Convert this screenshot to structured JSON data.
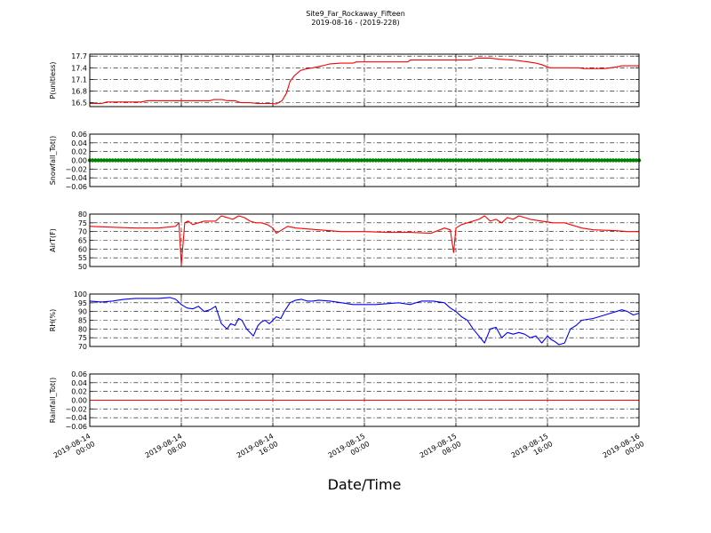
{
  "figure": {
    "title": "Site9_Far_Rockaway_Fifteen",
    "subtitle": "2019-08-16 - (2019-228)",
    "xlabel": "Date/Time",
    "xticks": [
      {
        "line1": "2019-08-14",
        "line2": "00:00"
      },
      {
        "line1": "2019-08-14",
        "line2": "08:00"
      },
      {
        "line1": "2019-08-14",
        "line2": "16:00"
      },
      {
        "line1": "2019-08-15",
        "line2": "00:00"
      },
      {
        "line1": "2019-08-15",
        "line2": "08:00"
      },
      {
        "line1": "2019-08-15",
        "line2": "16:00"
      },
      {
        "line1": "2019-08-16",
        "line2": "00:00"
      }
    ]
  },
  "chart_data": [
    {
      "type": "line",
      "ylabel": "P(unitless)",
      "ylim": [
        16.4,
        17.75
      ],
      "yticks": [
        "16.5",
        "16.8",
        "17.1",
        "17.4",
        "17.7"
      ],
      "ytick_values": [
        16.5,
        16.8,
        17.1,
        17.4,
        17.7
      ],
      "xlim": [
        0,
        48
      ],
      "grid": true,
      "color": "#ff0000",
      "x": [
        0,
        1,
        1.5,
        4.5,
        5,
        10.5,
        10.8,
        11.6,
        12,
        12.7,
        13.2,
        14,
        14.6,
        15.8,
        16.3,
        16.8,
        17.2,
        17.5,
        17.9,
        18.4,
        19,
        19.5,
        20.3,
        21,
        21.9,
        23,
        23.3,
        24.5,
        25,
        27.8,
        28,
        31.5,
        32,
        33.3,
        33.8,
        35,
        35.8,
        37,
        38.3,
        39,
        39.5,
        40.2,
        42.7,
        43.2,
        44,
        45,
        46,
        46.5,
        48
      ],
      "y": [
        16.48,
        16.48,
        16.52,
        16.52,
        16.55,
        16.55,
        16.58,
        16.58,
        16.55,
        16.55,
        16.5,
        16.5,
        16.48,
        16.48,
        16.47,
        16.55,
        16.75,
        17.05,
        17.2,
        17.33,
        17.38,
        17.4,
        17.45,
        17.5,
        17.52,
        17.52,
        17.55,
        17.55,
        17.55,
        17.55,
        17.6,
        17.6,
        17.6,
        17.6,
        17.65,
        17.65,
        17.62,
        17.6,
        17.55,
        17.52,
        17.48,
        17.4,
        17.4,
        17.38,
        17.38,
        17.38,
        17.42,
        17.45,
        17.45
      ]
    },
    {
      "type": "scatter",
      "ylabel": "Snowfall_Tot()",
      "ylim": [
        -0.06,
        0.06
      ],
      "yticks": [
        "−0.06",
        "−0.04",
        "−0.02",
        "0.00",
        "0.02",
        "0.04",
        "0.06"
      ],
      "ytick_values": [
        -0.06,
        -0.04,
        -0.02,
        0,
        0.02,
        0.04,
        0.06
      ],
      "xlim": [
        0,
        48
      ],
      "grid": true,
      "color": "#008000",
      "constant_value": 0,
      "x_range": [
        0,
        48
      ],
      "x_step": 0.25
    },
    {
      "type": "line",
      "ylabel": "AirT(F)",
      "ylim": [
        50,
        80
      ],
      "yticks": [
        "50",
        "55",
        "60",
        "65",
        "70",
        "75",
        "80"
      ],
      "ytick_values": [
        50,
        55,
        60,
        65,
        70,
        75,
        80
      ],
      "xlim": [
        0,
        48
      ],
      "grid": true,
      "color": "#ff0000",
      "x": [
        0,
        2,
        4,
        6,
        7.5,
        7.8,
        8,
        8.3,
        8.6,
        9,
        9.5,
        10,
        11,
        11.5,
        12,
        12.5,
        13,
        13.5,
        14,
        14.5,
        15,
        15.5,
        16,
        16.3,
        16.8,
        17.3,
        18,
        20,
        22,
        24,
        26,
        28,
        29.8,
        31,
        31.5,
        31.8,
        32,
        32.5,
        33,
        34,
        34.5,
        35,
        35.5,
        36,
        36.5,
        37,
        37.5,
        38,
        38.5,
        39.5,
        40.5,
        41.5,
        42,
        43,
        44,
        46,
        47,
        48
      ],
      "y": [
        73,
        72.5,
        72,
        72,
        73,
        75,
        51,
        75,
        76,
        74,
        75,
        76,
        76,
        79,
        78,
        77,
        79,
        78,
        76,
        75,
        75,
        74,
        72,
        69,
        71,
        73,
        72,
        71,
        70,
        70,
        69.5,
        69.5,
        69,
        72,
        71,
        58,
        72,
        74,
        75,
        77,
        79,
        76,
        77,
        75,
        78,
        77,
        79,
        78,
        77,
        76,
        75,
        75,
        74,
        72,
        71,
        70.5,
        70,
        70
      ]
    },
    {
      "type": "line",
      "ylabel": "RH(%)",
      "ylim": [
        70,
        100
      ],
      "yticks": [
        "70",
        "75",
        "80",
        "85",
        "90",
        "95",
        "100"
      ],
      "ytick_values": [
        70,
        75,
        80,
        85,
        90,
        95,
        100
      ],
      "xlim": [
        0,
        48
      ],
      "grid": true,
      "color": "#0000ff",
      "x": [
        0,
        1,
        2,
        3,
        4,
        5,
        6,
        7,
        7.5,
        8,
        8.5,
        9,
        9.5,
        10,
        10.5,
        11,
        11.5,
        12,
        12.3,
        12.7,
        13,
        13.3,
        13.7,
        14,
        14.3,
        14.7,
        15,
        15.3,
        15.7,
        16,
        16.3,
        16.7,
        17,
        17.5,
        18,
        18.5,
        19,
        19.5,
        20,
        21,
        22,
        23,
        24,
        25,
        26,
        27,
        28,
        29,
        30,
        31,
        31.5,
        32,
        32.5,
        33,
        33.5,
        34,
        34.5,
        35,
        35.5,
        36,
        36.5,
        37,
        37.5,
        38,
        38.5,
        39,
        39.5,
        40,
        40.3,
        40.6,
        41,
        41.5,
        42,
        42.5,
        43,
        44,
        45,
        46,
        46.5,
        47,
        47.5,
        48
      ],
      "y": [
        96,
        95.5,
        96,
        97,
        97.5,
        97.5,
        97.5,
        98,
        97,
        94,
        92,
        91.5,
        93,
        90,
        91,
        93,
        83,
        80,
        83,
        82,
        86,
        85,
        80,
        78,
        76,
        82,
        84,
        85,
        83,
        85,
        87,
        86,
        90,
        95,
        96.5,
        97,
        96,
        96,
        96.5,
        96,
        95,
        94,
        94,
        94,
        94.5,
        95,
        94,
        96,
        96,
        95,
        92,
        90,
        87,
        85,
        80,
        76,
        72,
        80,
        81,
        75,
        78,
        77,
        78,
        77,
        75,
        76,
        72,
        76,
        74,
        73,
        71,
        72,
        80,
        82,
        85,
        86,
        88,
        90,
        91,
        90,
        88,
        89
      ]
    },
    {
      "type": "line",
      "ylabel": "Rainfall_Tot()",
      "ylim": [
        -0.06,
        0.06
      ],
      "yticks": [
        "−0.06",
        "−0.04",
        "−0.02",
        "0.00",
        "0.02",
        "0.04",
        "0.06"
      ],
      "ytick_values": [
        -0.06,
        -0.04,
        -0.02,
        0,
        0.02,
        0.04,
        0.06
      ],
      "xlim": [
        0,
        48
      ],
      "grid": true,
      "color": "#ff0000",
      "x": [
        0,
        48
      ],
      "y": [
        0,
        0
      ]
    }
  ]
}
